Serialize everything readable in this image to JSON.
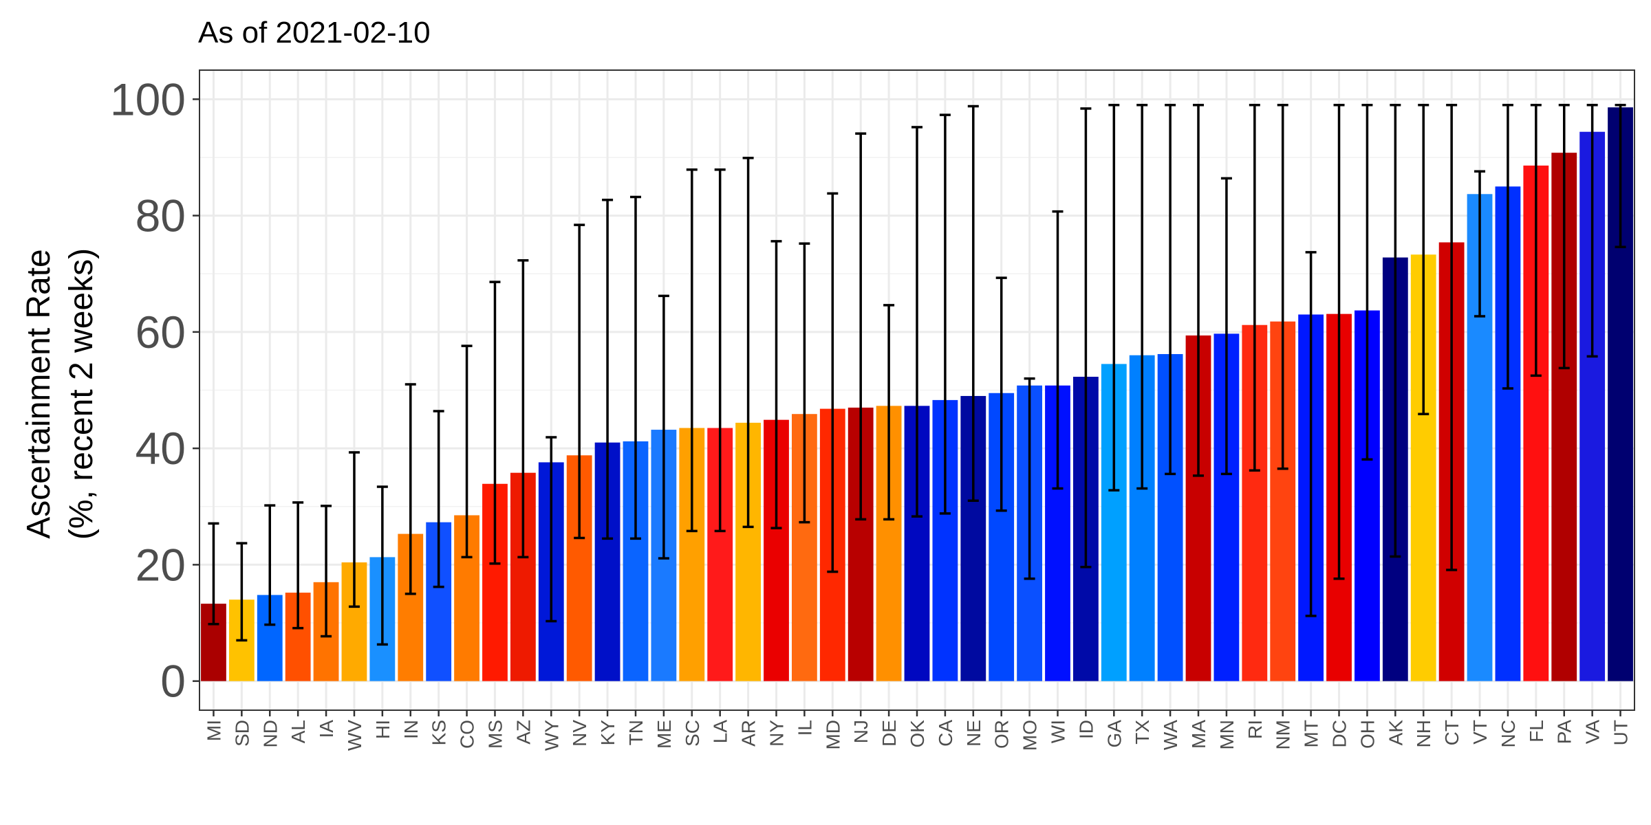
{
  "chart_data": {
    "type": "bar",
    "title": "As of 2021-02-10",
    "ylabel_lines": [
      "Ascertainment Rate",
      "(%, recent 2 weeks)"
    ],
    "ylim": [
      -5,
      105
    ],
    "yticks": [
      0,
      20,
      40,
      60,
      80,
      100
    ],
    "grid": true,
    "error_bars": true,
    "categories": [
      "MI",
      "SD",
      "ND",
      "AL",
      "IA",
      "WV",
      "HI",
      "IN",
      "KS",
      "CO",
      "MS",
      "AZ",
      "WY",
      "NV",
      "KY",
      "TN",
      "ME",
      "SC",
      "LA",
      "AR",
      "NY",
      "IL",
      "MD",
      "NJ",
      "DE",
      "OK",
      "CA",
      "NE",
      "OR",
      "MO",
      "WI",
      "ID",
      "GA",
      "TX",
      "WA",
      "MA",
      "MN",
      "RI",
      "NM",
      "MT",
      "DC",
      "OH",
      "AK",
      "NH",
      "CT",
      "VT",
      "NC",
      "FL",
      "PA",
      "VA",
      "UT"
    ],
    "values": [
      13.3,
      14.0,
      14.8,
      15.2,
      17.0,
      20.4,
      21.3,
      25.3,
      27.3,
      28.5,
      33.9,
      35.8,
      37.6,
      38.8,
      41.0,
      41.2,
      43.2,
      43.5,
      43.5,
      44.4,
      44.9,
      45.9,
      46.8,
      47.0,
      47.3,
      47.3,
      48.3,
      49.0,
      49.5,
      50.8,
      50.8,
      52.3,
      54.5,
      56.0,
      56.2,
      59.4,
      59.7,
      61.2,
      61.8,
      63.0,
      63.1,
      63.7,
      72.8,
      73.3,
      75.4,
      83.7,
      85.0,
      88.6,
      90.8,
      94.4,
      98.6
    ],
    "lower": [
      9.8,
      7.0,
      9.7,
      9.1,
      7.7,
      12.8,
      6.3,
      15.0,
      16.2,
      21.3,
      20.2,
      21.3,
      10.3,
      24.6,
      24.5,
      24.5,
      21.1,
      25.8,
      25.8,
      26.5,
      26.3,
      27.3,
      18.8,
      27.8,
      27.8,
      28.3,
      28.8,
      31.0,
      29.3,
      17.6,
      33.1,
      19.6,
      32.8,
      33.1,
      35.6,
      35.3,
      35.6,
      36.2,
      36.5,
      11.2,
      17.6,
      38.1,
      21.4,
      45.9,
      19.1,
      62.7,
      50.3,
      52.5,
      53.8,
      55.8,
      74.6
    ],
    "upper": [
      27.1,
      23.7,
      30.2,
      30.7,
      30.1,
      39.3,
      33.4,
      51.0,
      46.4,
      57.6,
      68.6,
      72.3,
      41.9,
      78.4,
      82.7,
      83.2,
      66.2,
      87.9,
      87.9,
      89.9,
      75.6,
      75.2,
      83.8,
      94.1,
      64.6,
      95.2,
      97.3,
      98.8,
      69.3,
      52.0,
      80.7,
      98.4,
      99.0,
      99.0,
      99.0,
      99.0,
      86.4,
      99.0,
      99.0,
      73.7,
      99.0,
      99.0,
      99.0,
      99.0,
      99.0,
      87.6,
      99.0,
      99.0,
      99.0,
      99.0,
      99.0
    ],
    "colors": [
      "#aa0000",
      "#ffc200",
      "#0066ff",
      "#ff5000",
      "#ff7300",
      "#ffaa00",
      "#1a90ff",
      "#ff7d00",
      "#1050ff",
      "#ff7b00",
      "#ff1a00",
      "#ee1a00",
      "#0018d8",
      "#ff5a00",
      "#0010c8",
      "#0a64ff",
      "#1a7aff",
      "#ffa000",
      "#ff1a1a",
      "#ffb600",
      "#ea0000",
      "#ff6a10",
      "#ff2800",
      "#b80000",
      "#ff9000",
      "#0008c0",
      "#0033ff",
      "#000aa0",
      "#0048ff",
      "#0a50ff",
      "#0010ff",
      "#000aa8",
      "#00a0ff",
      "#0080ff",
      "#0050ff",
      "#c80000",
      "#0020ff",
      "#ff2a10",
      "#ff4410",
      "#0018ff",
      "#e80000",
      "#0000ff",
      "#000080",
      "#ffcc00",
      "#d00000",
      "#1a8aff",
      "#0030ff",
      "#ff1010",
      "#b00000",
      "#1a1ae0",
      "#000070"
    ]
  }
}
